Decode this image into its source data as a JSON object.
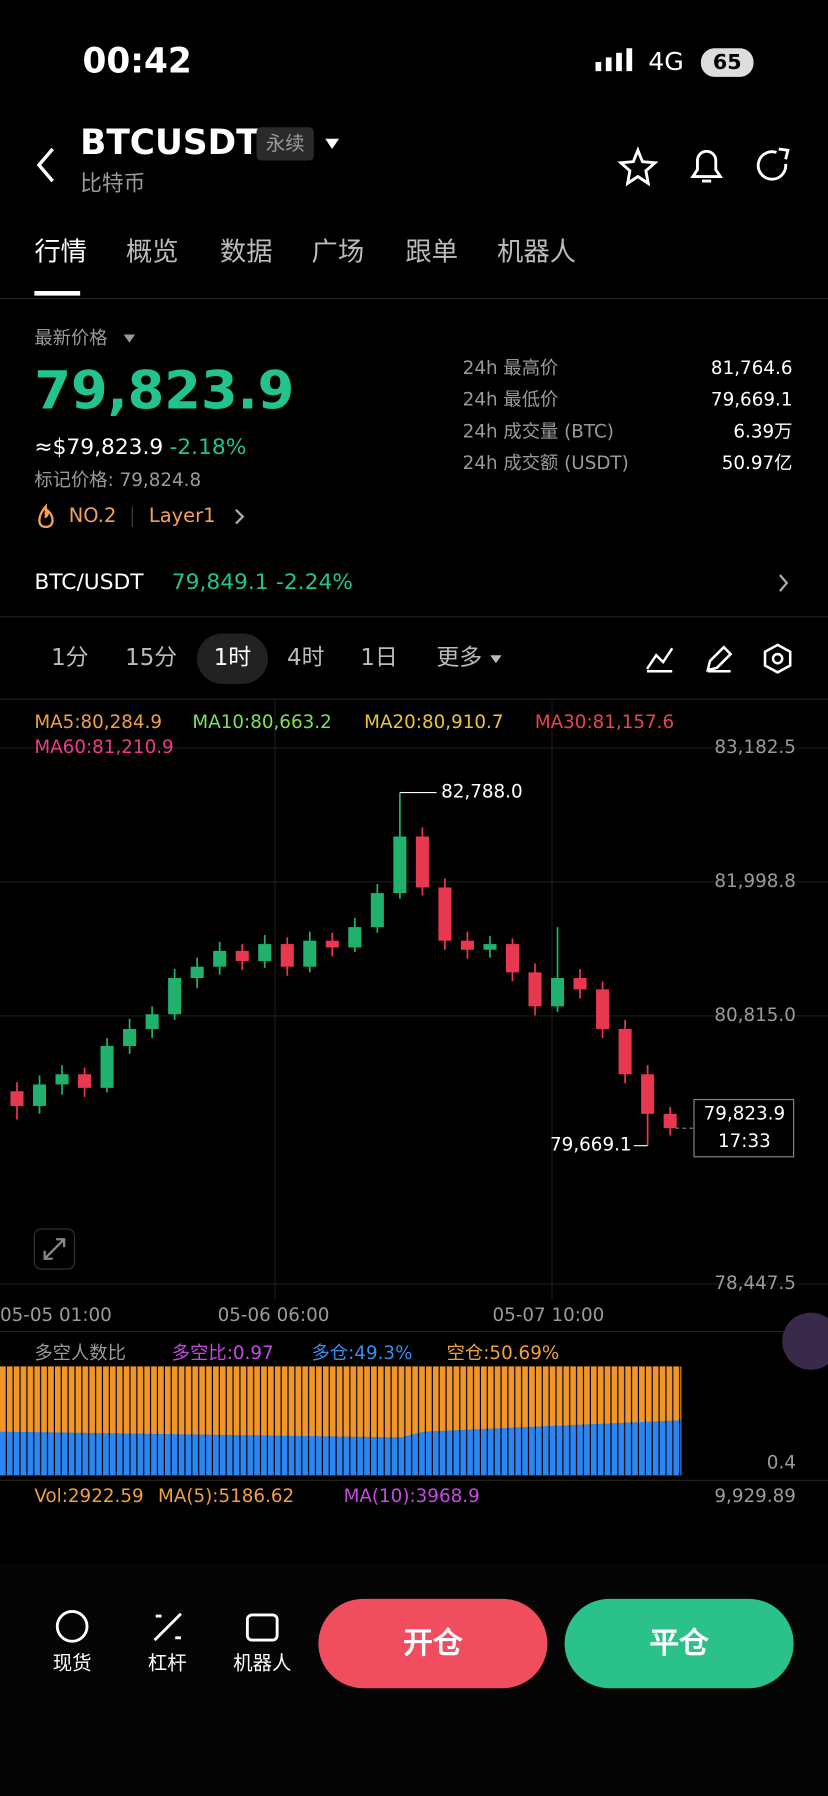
{
  "status": {
    "time": "00:42",
    "network": "4G",
    "battery": "65"
  },
  "header": {
    "symbol": "BTCUSDT",
    "tag": "永续",
    "name": "比特币"
  },
  "tabs": [
    "行情",
    "概览",
    "数据",
    "广场",
    "跟单",
    "机器人"
  ],
  "price": {
    "label": "最新价格",
    "last": "79,823.9",
    "usd": "≈$79,823.9",
    "change": "-2.18%",
    "mark": "标记价格: 79,824.8",
    "rank": "NO.2",
    "sector": "Layer1"
  },
  "stats": [
    [
      "24h 最高价",
      "81,764.6"
    ],
    [
      "24h 最低价",
      "79,669.1"
    ],
    [
      "24h 成交量 (BTC)",
      "6.39万"
    ],
    [
      "24h 成交额 (USDT)",
      "50.97亿"
    ]
  ],
  "spot": {
    "pair": "BTC/USDT",
    "price": "79,849.1",
    "change": "-2.24%"
  },
  "intervals": [
    "1分",
    "15分",
    "1时",
    "4时",
    "1日",
    "更多"
  ],
  "chart_data": {
    "type": "candlestick",
    "ma_labels": [
      "MA5:80,284.9",
      "MA10:80,663.2",
      "MA20:80,910.7",
      "MA30:81,157.6",
      "MA60:81,210.9"
    ],
    "ylim": [
      78306,
      83597
    ],
    "yticks": [
      {
        "value": 83182.5,
        "label": "83,182.5"
      },
      {
        "value": 81998.8,
        "label": "81,998.8"
      },
      {
        "value": 80815.0,
        "label": "80,815.0"
      },
      {
        "value": 78447.5,
        "label": "78,447.5"
      }
    ],
    "x_labels": [
      "05-05 01:00",
      "05-06 06:00",
      "05-07 10:00"
    ],
    "open": [
      80150,
      80020,
      80210,
      80300,
      80180,
      80550,
      80700,
      80830,
      81150,
      81250,
      81390,
      81300,
      81450,
      81250,
      81480,
      81420,
      81600,
      81900,
      82400,
      81950,
      81480,
      81400,
      81450,
      81200,
      80900,
      81150,
      81050,
      80700,
      80300,
      79950
    ],
    "high": [
      80230,
      80290,
      80380,
      80360,
      80620,
      80790,
      80900,
      81230,
      81330,
      81470,
      81450,
      81530,
      81510,
      81560,
      81550,
      81680,
      81980,
      82788,
      82480,
      82030,
      81560,
      81520,
      81500,
      81280,
      81600,
      81230,
      81120,
      80780,
      80380,
      80010
    ],
    "low": [
      79900,
      79950,
      80120,
      80100,
      80140,
      80480,
      80620,
      80780,
      81060,
      81180,
      81220,
      81240,
      81170,
      81200,
      81340,
      81380,
      81550,
      81850,
      81880,
      81400,
      81320,
      81330,
      81120,
      80820,
      80850,
      80970,
      80620,
      80220,
      79669.1,
      79760
    ],
    "close": [
      80020,
      80210,
      80300,
      80180,
      80550,
      80700,
      80830,
      81150,
      81250,
      81390,
      81300,
      81450,
      81250,
      81480,
      81420,
      81600,
      81900,
      82400,
      81950,
      81480,
      81400,
      81450,
      81200,
      80900,
      81150,
      81050,
      80700,
      80300,
      79950,
      79823.9
    ],
    "high_label": "82,788.0",
    "low_label": "79,669.1",
    "last_label": "79,823.9",
    "countdown": "17:33"
  },
  "ratio": {
    "title": "多空人数比",
    "ratio": "多空比:0.97",
    "long": "多仓:49.3%",
    "short": "空仓:50.69%",
    "axis": "0.4"
  },
  "volume": {
    "vol": "Vol:2922.59",
    "ma5": "MA(5):5186.62",
    "ma10": "MA(10):3968.9",
    "axis": "9,929.89"
  },
  "bottom": {
    "nav": [
      "现货",
      "杠杆",
      "机器人"
    ],
    "open": "开仓",
    "close": "平仓"
  }
}
